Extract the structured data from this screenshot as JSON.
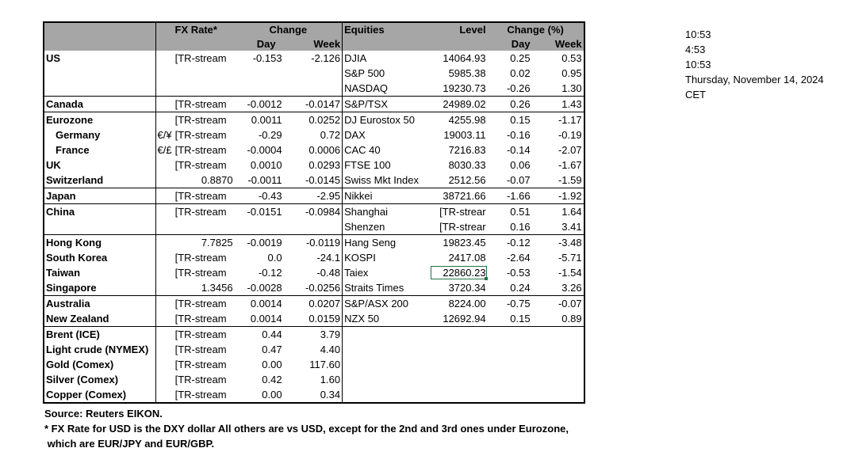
{
  "header": {
    "fx_rate": "FX Rate*",
    "change": "Change",
    "day": "Day",
    "week": "Week",
    "equities": "Equities",
    "level": "Level",
    "change_pct": "Change (%)",
    "eq_day": "Day",
    "eq_week": "Week"
  },
  "rows": [
    {
      "name": "US",
      "prefix": "",
      "fx": "[TR-stream",
      "chg_day": "-0.153",
      "chg_week": "-2.126",
      "eq_name": "DJIA",
      "level": "14064.93",
      "eq_day": "0.25",
      "eq_week": "0.53"
    },
    {
      "name": "",
      "prefix": "",
      "fx": "",
      "chg_day": "",
      "chg_week": "",
      "eq_name": "S&P 500",
      "level": "5985.38",
      "eq_day": "0.02",
      "eq_week": "0.95"
    },
    {
      "name": "",
      "prefix": "",
      "fx": "",
      "chg_day": "",
      "chg_week": "",
      "eq_name": "NASDAQ",
      "level": "19230.73",
      "eq_day": "-0.26",
      "eq_week": "1.30"
    },
    {
      "name": "Canada",
      "prefix": "",
      "fx": "[TR-stream",
      "chg_day": "-0.0012",
      "chg_week": "-0.0147",
      "eq_name": "S&P/TSX",
      "level": "24989.02",
      "eq_day": "0.26",
      "eq_week": "1.43"
    },
    {
      "name": "Eurozone",
      "prefix": "",
      "fx": "[TR-stream",
      "chg_day": "0.0011",
      "chg_week": "0.0252",
      "eq_name": "DJ Eurostox 50",
      "level": "4255.98",
      "eq_day": "0.15",
      "eq_week": "-1.17"
    },
    {
      "name": "Germany",
      "prefix": "€/¥",
      "fx": "[TR-stream",
      "chg_day": "-0.29",
      "chg_week": "0.72",
      "eq_name": "DAX",
      "level": "19003.11",
      "eq_day": "-0.16",
      "eq_week": "-0.19"
    },
    {
      "name": "France",
      "prefix": "€/£",
      "fx": "[TR-stream",
      "chg_day": "-0.0004",
      "chg_week": "0.0006",
      "eq_name": "CAC 40",
      "level": "7216.83",
      "eq_day": "-0.14",
      "eq_week": "-2.07"
    },
    {
      "name": "UK",
      "prefix": "",
      "fx": "[TR-stream",
      "chg_day": "0.0010",
      "chg_week": "0.0293",
      "eq_name": "FTSE 100",
      "level": "8030.33",
      "eq_day": "0.06",
      "eq_week": "-1.67"
    },
    {
      "name": "Switzerland",
      "prefix": "",
      "fx": "0.8870",
      "chg_day": "-0.0011",
      "chg_week": "-0.0145",
      "eq_name": "Swiss Mkt Index",
      "level": "2512.56",
      "eq_day": "-0.07",
      "eq_week": "-1.59"
    },
    {
      "name": "Japan",
      "prefix": "",
      "fx": "[TR-stream",
      "chg_day": "-0.43",
      "chg_week": "-2.95",
      "eq_name": "Nikkei",
      "level": "38721.66",
      "eq_day": "-1.66",
      "eq_week": "-1.92"
    },
    {
      "name": "China",
      "prefix": "",
      "fx": "[TR-stream",
      "chg_day": "-0.0151",
      "chg_week": "-0.0984",
      "eq_name": "Shanghai",
      "level": "[TR-strear",
      "eq_day": "0.51",
      "eq_week": "1.64"
    },
    {
      "name": "",
      "prefix": "",
      "fx": "",
      "chg_day": "",
      "chg_week": "",
      "eq_name": "Shenzen",
      "level": "[TR-strear",
      "eq_day": "0.16",
      "eq_week": "3.41"
    },
    {
      "name": "Hong Kong",
      "prefix": "",
      "fx": "7.7825",
      "chg_day": "-0.0019",
      "chg_week": "-0.0119",
      "eq_name": "Hang Seng",
      "level": "19823.45",
      "eq_day": "-0.12",
      "eq_week": "-3.48"
    },
    {
      "name": "South Korea",
      "prefix": "",
      "fx": "[TR-stream",
      "chg_day": "0.0",
      "chg_week": "-24.1",
      "eq_name": "KOSPI",
      "level": "2417.08",
      "eq_day": "-2.64",
      "eq_week": "-5.71"
    },
    {
      "name": "Taiwan",
      "prefix": "",
      "fx": "[TR-stream",
      "chg_day": "-0.12",
      "chg_week": "-0.48",
      "eq_name": "Taiex",
      "level": "22860.23",
      "eq_day": "-0.53",
      "eq_week": "-1.54"
    },
    {
      "name": "Singapore",
      "prefix": "",
      "fx": "1.3456",
      "chg_day": "-0.0028",
      "chg_week": "-0.0256",
      "eq_name": "Straits Times",
      "level": "3720.34",
      "eq_day": "0.24",
      "eq_week": "3.26"
    },
    {
      "name": "Australia",
      "prefix": "",
      "fx": "[TR-stream",
      "chg_day": "0.0014",
      "chg_week": "0.0207",
      "eq_name": "S&P/ASX  200",
      "level": "8224.00",
      "eq_day": "-0.75",
      "eq_week": "-0.07"
    },
    {
      "name": "New Zealand",
      "prefix": "",
      "fx": "[TR-stream",
      "chg_day": "0.0014",
      "chg_week": "0.0159",
      "eq_name": "NZX 50",
      "level": "12692.94",
      "eq_day": "0.15",
      "eq_week": "0.89"
    },
    {
      "name": "Brent (ICE)",
      "prefix": "",
      "fx": "[TR-stream",
      "chg_day": "0.44",
      "chg_week": "3.79",
      "eq_name": "",
      "level": "",
      "eq_day": "",
      "eq_week": ""
    },
    {
      "name": "Light crude (NYMEX)",
      "prefix": "",
      "fx": "[TR-stream",
      "chg_day": "0.47",
      "chg_week": "4.40",
      "eq_name": "",
      "level": "",
      "eq_day": "",
      "eq_week": ""
    },
    {
      "name": "Gold (Comex)",
      "prefix": "",
      "fx": "[TR-stream",
      "chg_day": "0.00",
      "chg_week": "117.60",
      "eq_name": "",
      "level": "",
      "eq_day": "",
      "eq_week": ""
    },
    {
      "name": "Silver (Comex)",
      "prefix": "",
      "fx": "[TR-stream",
      "chg_day": "0.42",
      "chg_week": "1.60",
      "eq_name": "",
      "level": "",
      "eq_day": "",
      "eq_week": ""
    },
    {
      "name": "Copper (Comex)",
      "prefix": "",
      "fx": "[TR-stream",
      "chg_day": "0.00",
      "chg_week": "0.34",
      "eq_name": "",
      "level": "",
      "eq_day": "",
      "eq_week": ""
    }
  ],
  "notes": {
    "source": "Source:  Reuters EIKON.",
    "footnote1": "* FX Rate for USD is the DXY dollar  All others are vs USD, except for the 2nd and 3rd ones under Eurozone,",
    "footnote2": " which are EUR/JPY and EUR/GBP."
  },
  "side": {
    "time1": "10:53",
    "time2": "4:53",
    "time3": "10:53",
    "date": "Thursday, November 14, 2024",
    "tz": "CET"
  },
  "colors": {
    "header_bg": "#a6a6a6",
    "selection": "#217346"
  }
}
